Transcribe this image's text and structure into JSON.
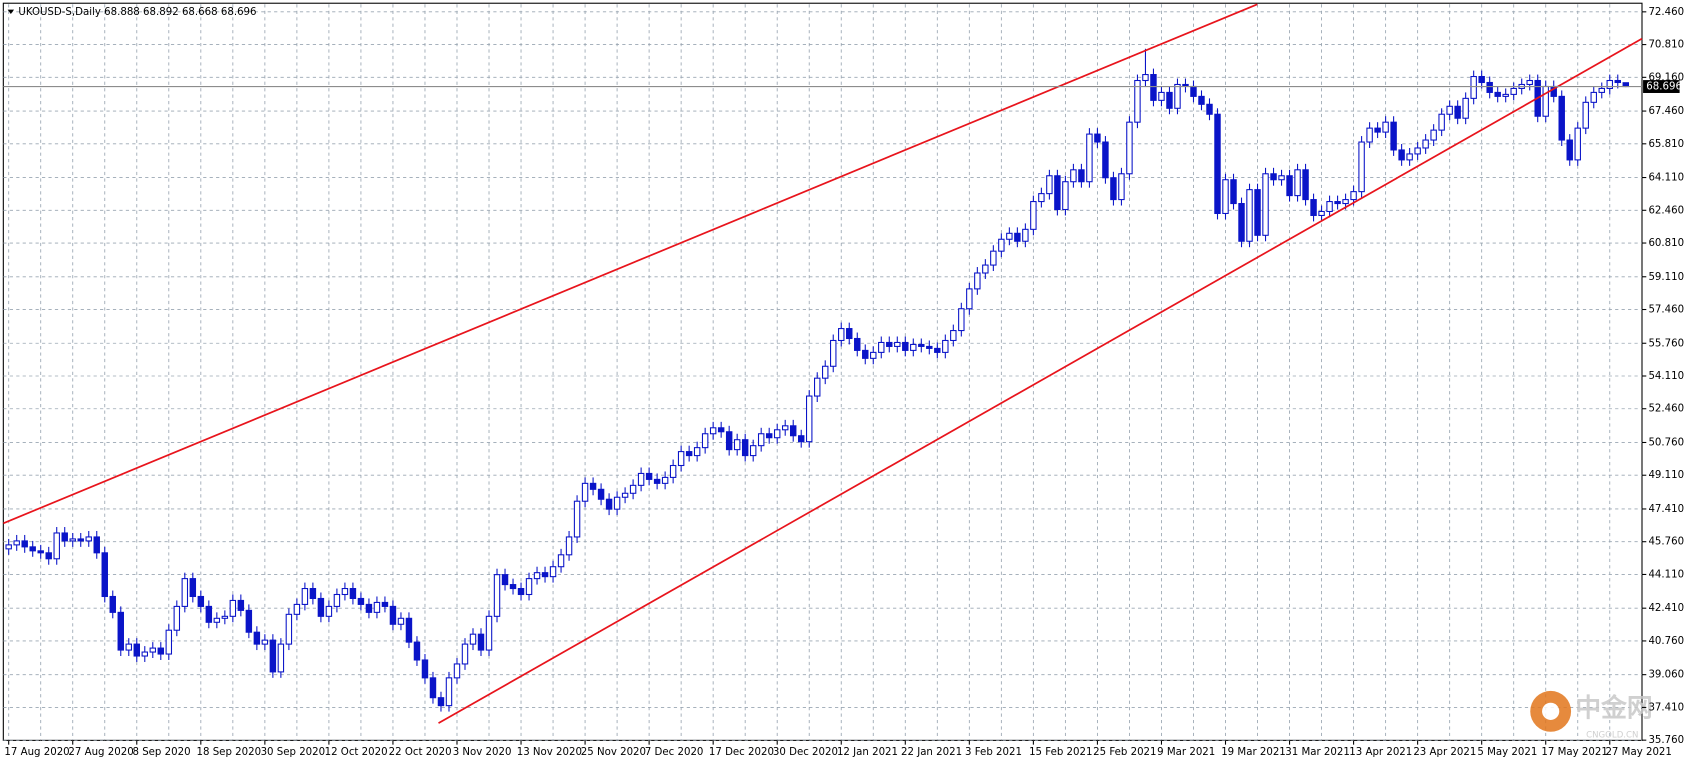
{
  "chart_data": {
    "type": "candlestick",
    "symbol": "UKOUSD-S,Daily",
    "color": "#0a14c8",
    "grid": true,
    "categories": [
      "17 Aug 2020",
      null,
      null,
      null,
      null,
      null,
      null,
      null,
      "27 Aug 2020",
      null,
      null,
      null,
      null,
      null,
      null,
      null,
      "8 Sep 2020",
      null,
      null,
      null,
      null,
      null,
      null,
      null,
      "18 Sep 2020",
      null,
      null,
      null,
      null,
      null,
      null,
      null,
      "30 Sep 2020",
      null,
      null,
      null,
      null,
      null,
      null,
      null,
      "12 Oct 2020",
      null,
      null,
      null,
      null,
      null,
      null,
      null,
      "22 Oct 2020",
      null,
      null,
      null,
      null,
      null,
      null,
      null,
      "3 Nov 2020",
      null,
      null,
      null,
      null,
      null,
      null,
      null,
      "13 Nov 2020",
      null,
      null,
      null,
      null,
      null,
      null,
      null,
      "25 Nov 2020",
      null,
      null,
      null,
      null,
      null,
      null,
      null,
      "7 Dec 2020",
      null,
      null,
      null,
      null,
      null,
      null,
      null,
      "17 Dec 2020",
      null,
      null,
      null,
      null,
      null,
      null,
      null,
      "30 Dec 2020",
      null,
      null,
      null,
      null,
      null,
      null,
      null,
      "12 Jan 2021",
      null,
      null,
      null,
      null,
      null,
      null,
      null,
      "22 Jan 2021",
      null,
      null,
      null,
      null,
      null,
      null,
      null,
      "3 Feb 2021",
      null,
      null,
      null,
      null,
      null,
      null,
      null,
      "15 Feb 2021",
      null,
      null,
      null,
      null,
      null,
      null,
      null,
      "25 Feb 2021",
      null,
      null,
      null,
      null,
      null,
      null,
      null,
      "9 Mar 2021",
      null,
      null,
      null,
      null,
      null,
      null,
      null,
      "19 Mar 2021",
      null,
      null,
      null,
      null,
      null,
      null,
      null,
      "31 Mar 2021",
      null,
      null,
      null,
      null,
      null,
      null,
      null,
      "13 Apr 2021",
      null,
      null,
      null,
      null,
      null,
      null,
      null,
      "23 Apr 2021",
      null,
      null,
      null,
      null,
      null,
      null,
      null,
      "5 May 2021",
      null,
      null,
      null,
      null,
      null,
      null,
      null,
      "17 May 2021",
      null,
      null,
      null,
      null,
      null,
      null,
      null,
      "27 May 2021",
      null,
      null
    ],
    "open": [
      45.4,
      45.6,
      45.8,
      45.5,
      45.3,
      45.2,
      44.9,
      46.2,
      45.8,
      45.9,
      45.8,
      46.0,
      45.2,
      43.0,
      42.2,
      40.3,
      40.6,
      40.0,
      40.2,
      40.4,
      40.1,
      41.3,
      42.5,
      43.9,
      43.0,
      42.5,
      41.7,
      41.9,
      42.0,
      42.8,
      42.3,
      41.2,
      40.6,
      40.8,
      39.2,
      40.6,
      42.1,
      42.6,
      43.4,
      42.9,
      42.0,
      42.5,
      43.1,
      43.4,
      42.9,
      42.6,
      42.2,
      42.7,
      42.5,
      41.6,
      41.9,
      40.7,
      39.8,
      38.9,
      37.9,
      37.5,
      38.9,
      39.6,
      40.6,
      41.1,
      40.3,
      42.0,
      44.1,
      43.6,
      43.4,
      43.1,
      43.9,
      44.2,
      44.0,
      44.5,
      45.1,
      46.0,
      47.8,
      48.7,
      48.4,
      47.9,
      47.4,
      48.0,
      48.2,
      48.6,
      49.2,
      48.9,
      48.7,
      49.0,
      49.6,
      50.3,
      50.1,
      50.5,
      51.2,
      51.5,
      51.3,
      50.4,
      50.9,
      50.1,
      50.6,
      51.2,
      51.0,
      51.4,
      51.6,
      51.1,
      50.8,
      53.1,
      54.0,
      54.6,
      55.9,
      56.5,
      56.0,
      55.4,
      55.0,
      55.3,
      55.8,
      55.6,
      55.8,
      55.4,
      55.7,
      55.6,
      55.5,
      55.3,
      55.9,
      56.4,
      57.5,
      58.5,
      59.3,
      59.7,
      60.4,
      61.0,
      61.3,
      60.9,
      61.5,
      62.9,
      63.3,
      64.2,
      62.5,
      63.9,
      64.5,
      63.9,
      66.3,
      65.9,
      64.1,
      63.0,
      64.3,
      66.9,
      69.0,
      69.3,
      68.0,
      68.4,
      67.6,
      68.8,
      68.7,
      68.2,
      67.8,
      67.3,
      62.3,
      64.0,
      62.8,
      60.9,
      63.5,
      61.2,
      64.3,
      64.0,
      64.2,
      63.2,
      64.5,
      63.0,
      62.2,
      62.4,
      62.9,
      62.8,
      63.0,
      63.4,
      65.9,
      66.6,
      66.4,
      66.9,
      65.5,
      65.0,
      65.3,
      65.6,
      66.0,
      66.5,
      67.3,
      67.7,
      67.1,
      68.1,
      69.2,
      68.9,
      68.4,
      68.2,
      68.3,
      68.6,
      68.8,
      69.0,
      67.2,
      68.7,
      68.2,
      66.0,
      65.0,
      66.6,
      67.9,
      68.4,
      68.6,
      69.0,
      68.888
    ],
    "high": [
      45.9,
      46.1,
      46.1,
      45.8,
      45.6,
      45.5,
      46.5,
      46.5,
      46.2,
      46.2,
      46.3,
      46.3,
      45.5,
      43.3,
      42.5,
      40.9,
      40.9,
      40.5,
      40.7,
      40.7,
      41.6,
      42.8,
      44.2,
      44.2,
      43.3,
      42.8,
      42.2,
      42.3,
      43.1,
      43.1,
      42.6,
      41.5,
      41.1,
      41.1,
      40.9,
      42.4,
      42.9,
      43.7,
      43.7,
      43.2,
      42.8,
      43.4,
      43.7,
      43.7,
      43.2,
      42.9,
      43.0,
      43.0,
      42.8,
      42.2,
      42.2,
      41.0,
      40.1,
      39.2,
      38.2,
      39.2,
      39.9,
      40.9,
      41.4,
      41.4,
      42.3,
      44.4,
      44.4,
      43.9,
      43.7,
      44.2,
      44.5,
      44.5,
      44.8,
      45.4,
      46.3,
      48.1,
      49.0,
      49.0,
      48.7,
      48.2,
      48.3,
      48.5,
      48.9,
      49.5,
      49.5,
      49.2,
      49.3,
      49.9,
      50.6,
      50.6,
      50.8,
      51.5,
      51.8,
      51.8,
      51.6,
      51.2,
      51.2,
      50.9,
      51.5,
      51.5,
      51.7,
      51.9,
      51.9,
      51.4,
      53.4,
      54.3,
      54.9,
      56.2,
      56.8,
      56.8,
      56.3,
      55.7,
      55.6,
      56.1,
      56.1,
      56.1,
      56.1,
      56.0,
      56.0,
      55.9,
      55.8,
      56.2,
      56.7,
      57.8,
      58.8,
      59.6,
      60.0,
      60.7,
      61.3,
      61.6,
      61.6,
      61.8,
      63.2,
      63.6,
      64.5,
      64.5,
      64.2,
      64.8,
      64.8,
      66.6,
      66.6,
      66.2,
      64.4,
      64.6,
      67.2,
      69.3,
      70.6,
      69.6,
      68.7,
      68.7,
      69.1,
      69.1,
      69.0,
      68.5,
      68.1,
      67.6,
      64.3,
      64.3,
      63.1,
      63.8,
      63.8,
      64.6,
      64.6,
      64.5,
      64.5,
      64.8,
      64.8,
      63.3,
      62.7,
      63.2,
      63.2,
      63.3,
      63.7,
      66.2,
      66.9,
      66.9,
      67.2,
      67.2,
      65.8,
      65.6,
      65.9,
      66.3,
      66.8,
      67.6,
      68.0,
      68.0,
      68.4,
      69.5,
      69.5,
      69.2,
      68.7,
      68.6,
      68.9,
      69.1,
      69.3,
      69.3,
      69.0,
      69.0,
      68.5,
      66.3,
      66.9,
      68.2,
      68.7,
      68.9,
      69.3,
      69.3,
      68.892
    ],
    "low": [
      45.1,
      45.3,
      45.2,
      45.0,
      44.9,
      44.6,
      44.6,
      45.5,
      45.5,
      45.5,
      45.5,
      44.9,
      42.7,
      41.9,
      40.0,
      40.0,
      39.7,
      39.7,
      39.9,
      39.8,
      39.8,
      41.0,
      42.2,
      42.7,
      42.2,
      41.4,
      41.4,
      41.6,
      41.7,
      42.0,
      40.9,
      40.3,
      40.3,
      38.9,
      38.9,
      40.3,
      41.8,
      42.3,
      42.6,
      41.7,
      41.7,
      42.2,
      42.8,
      42.6,
      42.3,
      41.9,
      41.9,
      42.2,
      41.3,
      41.3,
      40.4,
      39.5,
      38.6,
      37.6,
      37.2,
      37.2,
      38.6,
      39.3,
      40.3,
      40.0,
      40.0,
      41.7,
      43.3,
      43.1,
      42.8,
      42.8,
      43.6,
      43.7,
      43.7,
      44.2,
      44.8,
      45.7,
      47.5,
      48.1,
      47.6,
      47.1,
      47.1,
      47.7,
      47.9,
      48.3,
      48.6,
      48.4,
      48.4,
      48.7,
      49.3,
      49.8,
      49.8,
      50.2,
      50.9,
      51.0,
      50.1,
      50.1,
      49.8,
      49.8,
      50.3,
      50.7,
      50.7,
      51.1,
      50.8,
      50.5,
      50.5,
      52.8,
      53.7,
      54.3,
      55.6,
      55.7,
      55.1,
      54.7,
      54.7,
      55.0,
      55.3,
      55.3,
      55.1,
      55.1,
      55.3,
      55.2,
      55.0,
      55.0,
      55.6,
      56.1,
      57.2,
      58.2,
      59.0,
      59.4,
      60.1,
      60.7,
      60.6,
      60.6,
      61.2,
      62.6,
      63.0,
      62.2,
      62.2,
      63.6,
      63.6,
      63.6,
      65.6,
      63.8,
      62.7,
      62.7,
      64.0,
      66.6,
      68.7,
      67.7,
      67.7,
      67.3,
      67.3,
      68.4,
      67.9,
      67.5,
      67.0,
      62.0,
      62.0,
      62.5,
      60.6,
      60.6,
      60.9,
      60.9,
      63.7,
      63.7,
      62.9,
      62.9,
      62.7,
      61.9,
      61.9,
      62.1,
      62.5,
      62.5,
      62.7,
      63.1,
      65.6,
      66.1,
      66.1,
      65.2,
      64.7,
      64.7,
      65.0,
      65.3,
      65.7,
      66.2,
      67.0,
      66.8,
      66.8,
      67.8,
      68.6,
      68.1,
      67.9,
      67.9,
      68.0,
      68.3,
      68.5,
      66.9,
      66.9,
      67.9,
      65.7,
      64.7,
      64.7,
      66.3,
      67.6,
      68.1,
      68.3,
      68.6,
      68.668
    ],
    "close": [
      45.6,
      45.8,
      45.5,
      45.3,
      45.2,
      44.9,
      46.2,
      45.8,
      45.9,
      45.8,
      46.0,
      45.2,
      43.0,
      42.2,
      40.3,
      40.6,
      40.0,
      40.2,
      40.4,
      40.1,
      41.3,
      42.5,
      43.9,
      43.0,
      42.5,
      41.7,
      41.9,
      42.0,
      42.8,
      42.3,
      41.2,
      40.6,
      40.8,
      39.2,
      40.6,
      42.1,
      42.6,
      43.4,
      42.9,
      42.0,
      42.5,
      43.1,
      43.4,
      42.9,
      42.6,
      42.2,
      42.7,
      42.5,
      41.6,
      41.9,
      40.7,
      39.8,
      38.9,
      37.9,
      37.5,
      38.9,
      39.6,
      40.6,
      41.1,
      40.3,
      42.0,
      44.1,
      43.6,
      43.4,
      43.1,
      43.9,
      44.2,
      44.0,
      44.5,
      45.1,
      46.0,
      47.8,
      48.7,
      48.4,
      47.9,
      47.4,
      48.0,
      48.2,
      48.6,
      49.2,
      48.9,
      48.7,
      49.0,
      49.6,
      50.3,
      50.1,
      50.5,
      51.2,
      51.5,
      51.3,
      50.4,
      50.9,
      50.1,
      50.6,
      51.2,
      51.0,
      51.4,
      51.6,
      51.1,
      50.8,
      53.1,
      54.0,
      54.6,
      55.9,
      56.5,
      56.0,
      55.4,
      55.0,
      55.3,
      55.8,
      55.6,
      55.8,
      55.4,
      55.7,
      55.6,
      55.5,
      55.3,
      55.9,
      56.4,
      57.5,
      58.5,
      59.3,
      59.7,
      60.4,
      61.0,
      61.3,
      60.9,
      61.5,
      62.9,
      63.3,
      64.2,
      62.5,
      63.9,
      64.5,
      63.9,
      66.3,
      65.9,
      64.1,
      63.0,
      64.3,
      66.9,
      69.0,
      69.3,
      68.0,
      68.4,
      67.6,
      68.8,
      68.7,
      68.2,
      67.8,
      67.3,
      62.3,
      64.0,
      62.8,
      60.9,
      63.5,
      61.2,
      64.3,
      64.0,
      64.2,
      63.2,
      64.5,
      63.0,
      62.2,
      62.4,
      62.9,
      62.8,
      63.0,
      63.4,
      65.9,
      66.6,
      66.4,
      66.9,
      65.5,
      65.0,
      65.3,
      65.6,
      66.0,
      66.5,
      67.3,
      67.7,
      67.1,
      68.1,
      69.2,
      68.9,
      68.4,
      68.2,
      68.3,
      68.6,
      68.8,
      69.0,
      67.2,
      68.7,
      68.2,
      66.0,
      65.0,
      66.6,
      67.9,
      68.4,
      68.6,
      69.0,
      68.9,
      68.696
    ],
    "ylim": [
      35.75,
      72.84
    ],
    "yticks": [
      {
        "value": 72.46,
        "label": "72.460"
      },
      {
        "value": 70.81,
        "label": "70.810"
      },
      {
        "value": 69.16,
        "label": "69.160"
      },
      {
        "value": 67.46,
        "label": "67.460"
      },
      {
        "value": 65.81,
        "label": "65.810"
      },
      {
        "value": 64.11,
        "label": "64.110"
      },
      {
        "value": 62.46,
        "label": "62.460"
      },
      {
        "value": 60.81,
        "label": "60.810"
      },
      {
        "value": 59.11,
        "label": "59.110"
      },
      {
        "value": 57.46,
        "label": "57.460"
      },
      {
        "value": 55.76,
        "label": "55.760"
      },
      {
        "value": 54.11,
        "label": "54.110"
      },
      {
        "value": 52.46,
        "label": "52.460"
      },
      {
        "value": 50.76,
        "label": "50.760"
      },
      {
        "value": 49.11,
        "label": "49.110"
      },
      {
        "value": 47.41,
        "label": "47.410"
      },
      {
        "value": 45.76,
        "label": "45.760"
      },
      {
        "value": 44.11,
        "label": "44.110"
      },
      {
        "value": 42.41,
        "label": "42.410"
      },
      {
        "value": 40.76,
        "label": "40.760"
      },
      {
        "value": 39.06,
        "label": "39.060"
      },
      {
        "value": 37.41,
        "label": "37.410"
      },
      {
        "value": 35.76,
        "label": "35.760"
      }
    ],
    "watermark": {
      "brand": "中金网",
      "site": "CNGOLD.CN"
    }
  }
}
